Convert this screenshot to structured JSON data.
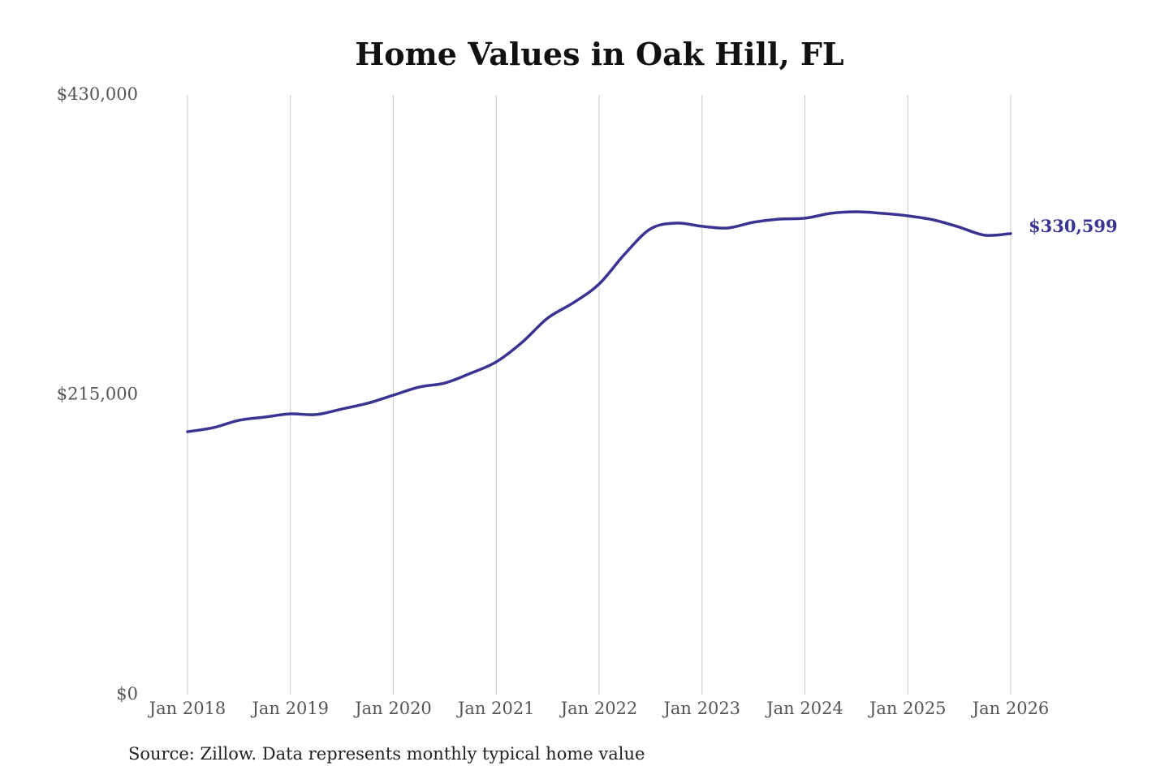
{
  "chart_data": {
    "type": "line",
    "title": "Home Values in Oak Hill, FL",
    "xlabel": "",
    "ylabel": "",
    "ylim": [
      0,
      430000
    ],
    "y_ticks": [
      0,
      215000,
      430000
    ],
    "y_tick_labels": [
      "$0",
      "$215,000",
      "$430,000"
    ],
    "x_ticks": [
      "2018-01",
      "2019-01",
      "2020-01",
      "2021-01",
      "2022-01",
      "2023-01",
      "2024-01",
      "2025-01",
      "2026-01"
    ],
    "x_tick_labels": [
      "Jan 2018",
      "Jan 2019",
      "Jan 2020",
      "Jan 2021",
      "Jan 2022",
      "Jan 2023",
      "Jan 2024",
      "Jan 2025",
      "Jan 2026"
    ],
    "grid": "vertical",
    "line_color": "#3a3391",
    "end_label": "$330,599",
    "series": [
      {
        "x": [
          "2018-01",
          "2018-04",
          "2018-07",
          "2018-10",
          "2019-01",
          "2019-04",
          "2019-07",
          "2019-10",
          "2020-01",
          "2020-04",
          "2020-07",
          "2020-10",
          "2021-01",
          "2021-04",
          "2021-07",
          "2021-10",
          "2022-01",
          "2022-04",
          "2022-07",
          "2022-10",
          "2023-01",
          "2023-04",
          "2023-07",
          "2023-10",
          "2024-01",
          "2024-04",
          "2024-07",
          "2024-10",
          "2025-01",
          "2025-04",
          "2025-07",
          "2025-10",
          "2026-01"
        ],
        "values": [
          188500,
          191400,
          196700,
          199000,
          201300,
          200800,
          204800,
          208900,
          214700,
          220500,
          223400,
          230400,
          238600,
          252500,
          270000,
          281000,
          294400,
          316000,
          334000,
          338100,
          335800,
          334600,
          338700,
          341000,
          341600,
          345100,
          346200,
          345100,
          343300,
          340400,
          335200,
          329400,
          330599
        ]
      }
    ]
  },
  "source": "Source: Zillow. Data represents monthly typical home value"
}
